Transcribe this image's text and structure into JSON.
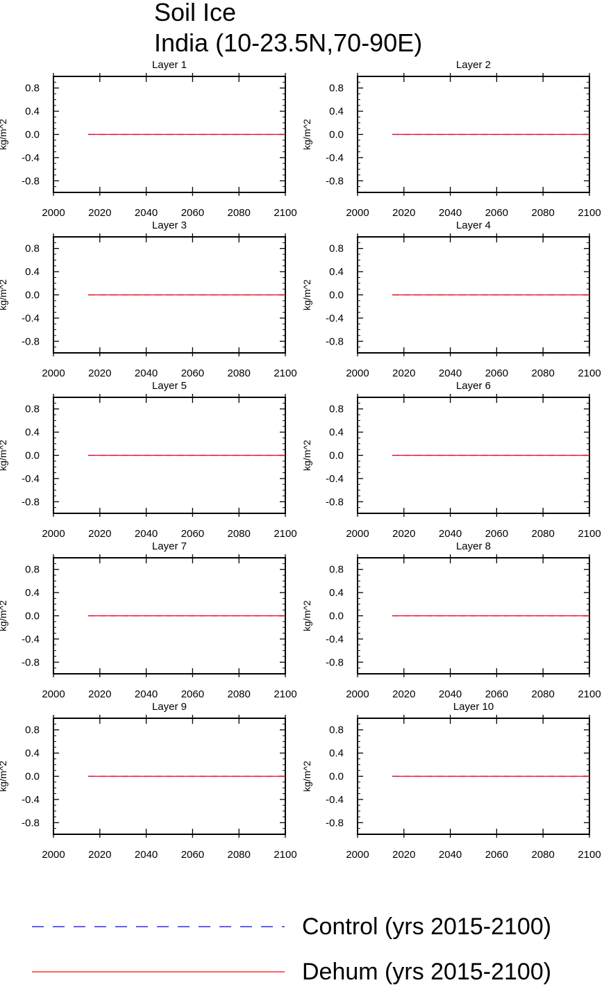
{
  "title": {
    "line1": "Soil Ice",
    "line2": "India (10-23.5N,70-90E)"
  },
  "colors": {
    "control": "#0000ff",
    "dehum": "#ff0000",
    "axis": "#000000"
  },
  "legend": [
    {
      "label": "Control (yrs 2015-2100)",
      "color": "#0000ff",
      "style": "dashed"
    },
    {
      "label": "Dehum (yrs 2015-2100)",
      "color": "#ff0000",
      "style": "solid"
    }
  ],
  "chart_data": [
    {
      "type": "line",
      "title": "Layer 1",
      "ylabel": "kg/m^2",
      "xlim": [
        2000,
        2100
      ],
      "ylim": [
        -1,
        1
      ],
      "xticks": [
        2000,
        2020,
        2040,
        2060,
        2080,
        2100
      ],
      "yticks": [
        -0.8,
        -0.4,
        0.0,
        0.4,
        0.8
      ],
      "series": [
        {
          "name": "Control (yrs 2015-2100)",
          "x": [
            2015,
            2100
          ],
          "y": [
            0,
            0
          ]
        },
        {
          "name": "Dehum (yrs 2015-2100)",
          "x": [
            2015,
            2100
          ],
          "y": [
            0,
            0
          ]
        }
      ]
    },
    {
      "type": "line",
      "title": "Layer 2",
      "ylabel": "kg/m^2",
      "xlim": [
        2000,
        2100
      ],
      "ylim": [
        -1,
        1
      ],
      "xticks": [
        2000,
        2020,
        2040,
        2060,
        2080,
        2100
      ],
      "yticks": [
        -0.8,
        -0.4,
        0.0,
        0.4,
        0.8
      ],
      "series": [
        {
          "name": "Control (yrs 2015-2100)",
          "x": [
            2015,
            2100
          ],
          "y": [
            0,
            0
          ]
        },
        {
          "name": "Dehum (yrs 2015-2100)",
          "x": [
            2015,
            2100
          ],
          "y": [
            0,
            0
          ]
        }
      ]
    },
    {
      "type": "line",
      "title": "Layer 3",
      "ylabel": "kg/m^2",
      "xlim": [
        2000,
        2100
      ],
      "ylim": [
        -1,
        1
      ],
      "xticks": [
        2000,
        2020,
        2040,
        2060,
        2080,
        2100
      ],
      "yticks": [
        -0.8,
        -0.4,
        0.0,
        0.4,
        0.8
      ],
      "series": [
        {
          "name": "Control (yrs 2015-2100)",
          "x": [
            2015,
            2100
          ],
          "y": [
            0,
            0
          ]
        },
        {
          "name": "Dehum (yrs 2015-2100)",
          "x": [
            2015,
            2100
          ],
          "y": [
            0,
            0
          ]
        }
      ]
    },
    {
      "type": "line",
      "title": "Layer 4",
      "ylabel": "kg/m^2",
      "xlim": [
        2000,
        2100
      ],
      "ylim": [
        -1,
        1
      ],
      "xticks": [
        2000,
        2020,
        2040,
        2060,
        2080,
        2100
      ],
      "yticks": [
        -0.8,
        -0.4,
        0.0,
        0.4,
        0.8
      ],
      "series": [
        {
          "name": "Control (yrs 2015-2100)",
          "x": [
            2015,
            2100
          ],
          "y": [
            0,
            0
          ]
        },
        {
          "name": "Dehum (yrs 2015-2100)",
          "x": [
            2015,
            2100
          ],
          "y": [
            0,
            0
          ]
        }
      ]
    },
    {
      "type": "line",
      "title": "Layer 5",
      "ylabel": "kg/m^2",
      "xlim": [
        2000,
        2100
      ],
      "ylim": [
        -1,
        1
      ],
      "xticks": [
        2000,
        2020,
        2040,
        2060,
        2080,
        2100
      ],
      "yticks": [
        -0.8,
        -0.4,
        0.0,
        0.4,
        0.8
      ],
      "series": [
        {
          "name": "Control (yrs 2015-2100)",
          "x": [
            2015,
            2100
          ],
          "y": [
            0,
            0
          ]
        },
        {
          "name": "Dehum (yrs 2015-2100)",
          "x": [
            2015,
            2100
          ],
          "y": [
            0,
            0
          ]
        }
      ]
    },
    {
      "type": "line",
      "title": "Layer 6",
      "ylabel": "kg/m^2",
      "xlim": [
        2000,
        2100
      ],
      "ylim": [
        -1,
        1
      ],
      "xticks": [
        2000,
        2020,
        2040,
        2060,
        2080,
        2100
      ],
      "yticks": [
        -0.8,
        -0.4,
        0.0,
        0.4,
        0.8
      ],
      "series": [
        {
          "name": "Control (yrs 2015-2100)",
          "x": [
            2015,
            2100
          ],
          "y": [
            0,
            0
          ]
        },
        {
          "name": "Dehum (yrs 2015-2100)",
          "x": [
            2015,
            2100
          ],
          "y": [
            0,
            0
          ]
        }
      ]
    },
    {
      "type": "line",
      "title": "Layer 7",
      "ylabel": "kg/m^2",
      "xlim": [
        2000,
        2100
      ],
      "ylim": [
        -1,
        1
      ],
      "xticks": [
        2000,
        2020,
        2040,
        2060,
        2080,
        2100
      ],
      "yticks": [
        -0.8,
        -0.4,
        0.0,
        0.4,
        0.8
      ],
      "series": [
        {
          "name": "Control (yrs 2015-2100)",
          "x": [
            2015,
            2100
          ],
          "y": [
            0,
            0
          ]
        },
        {
          "name": "Dehum (yrs 2015-2100)",
          "x": [
            2015,
            2100
          ],
          "y": [
            0,
            0
          ]
        }
      ]
    },
    {
      "type": "line",
      "title": "Layer 8",
      "ylabel": "kg/m^2",
      "xlim": [
        2000,
        2100
      ],
      "ylim": [
        -1,
        1
      ],
      "xticks": [
        2000,
        2020,
        2040,
        2060,
        2080,
        2100
      ],
      "yticks": [
        -0.8,
        -0.4,
        0.0,
        0.4,
        0.8
      ],
      "series": [
        {
          "name": "Control (yrs 2015-2100)",
          "x": [
            2015,
            2100
          ],
          "y": [
            0,
            0
          ]
        },
        {
          "name": "Dehum (yrs 2015-2100)",
          "x": [
            2015,
            2100
          ],
          "y": [
            0,
            0
          ]
        }
      ]
    },
    {
      "type": "line",
      "title": "Layer 9",
      "ylabel": "kg/m^2",
      "xlim": [
        2000,
        2100
      ],
      "ylim": [
        -1,
        1
      ],
      "xticks": [
        2000,
        2020,
        2040,
        2060,
        2080,
        2100
      ],
      "yticks": [
        -0.8,
        -0.4,
        0.0,
        0.4,
        0.8
      ],
      "series": [
        {
          "name": "Control (yrs 2015-2100)",
          "x": [
            2015,
            2100
          ],
          "y": [
            0,
            0
          ]
        },
        {
          "name": "Dehum (yrs 2015-2100)",
          "x": [
            2015,
            2100
          ],
          "y": [
            0,
            0
          ]
        }
      ]
    },
    {
      "type": "line",
      "title": "Layer 10",
      "ylabel": "kg/m^2",
      "xlim": [
        2000,
        2100
      ],
      "ylim": [
        -1,
        1
      ],
      "xticks": [
        2000,
        2020,
        2040,
        2060,
        2080,
        2100
      ],
      "yticks": [
        -0.8,
        -0.4,
        0.0,
        0.4,
        0.8
      ],
      "series": [
        {
          "name": "Control (yrs 2015-2100)",
          "x": [
            2015,
            2100
          ],
          "y": [
            0,
            0
          ]
        },
        {
          "name": "Dehum (yrs 2015-2100)",
          "x": [
            2015,
            2100
          ],
          "y": [
            0,
            0
          ]
        }
      ]
    }
  ]
}
